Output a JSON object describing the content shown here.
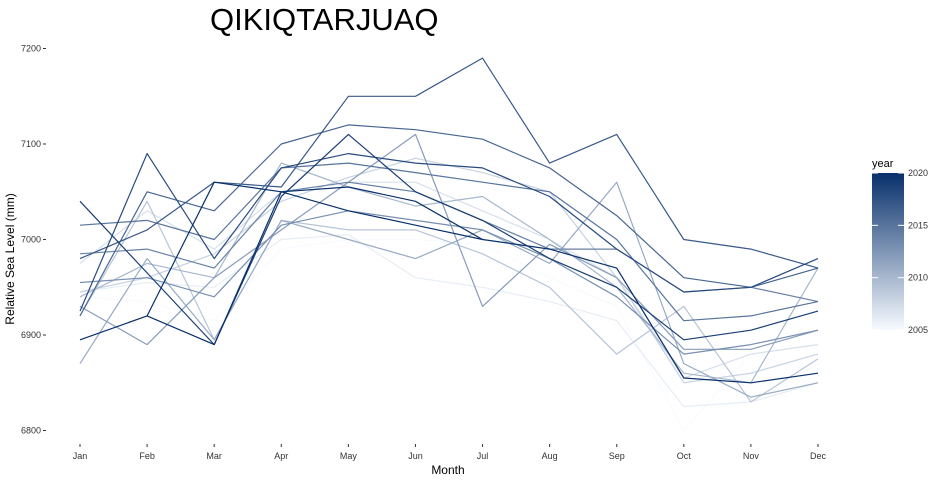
{
  "chart_data": {
    "type": "line",
    "title": "QIKIQTARJUAQ",
    "xlabel": "Month",
    "ylabel": "Relative Sea Level (mm)",
    "x": [
      "Jan",
      "Feb",
      "Mar",
      "Apr",
      "May",
      "Jun",
      "Jul",
      "Aug",
      "Sep",
      "Oct",
      "Nov",
      "Dec"
    ],
    "ylim": [
      6790,
      7215
    ],
    "yticks": [
      6800,
      6900,
      7000,
      7100,
      7200
    ],
    "grid": false,
    "legend": {
      "title": "year",
      "placement": "right",
      "min": 2005,
      "max": 2020,
      "ticks": [
        2005,
        2010,
        2015,
        2020
      ],
      "color_low": "#f7fbff",
      "color_high": "#08306b"
    },
    "series": [
      {
        "year": 2005,
        "values": [
          6940,
          6935,
          6915,
          6990,
          7000,
          7000,
          6995,
          6960,
          6930,
          6800,
          6880,
          6860
        ]
      },
      {
        "year": 2006,
        "values": [
          6945,
          6955,
          6950,
          7000,
          7005,
          6960,
          6950,
          6935,
          6915,
          6825,
          6830,
          6850
        ]
      },
      {
        "year": 2007,
        "values": [
          6975,
          7030,
          6990,
          7050,
          7060,
          7060,
          7030,
          7000,
          6960,
          6855,
          6880,
          6890
        ]
      },
      {
        "year": 2008,
        "values": [
          6945,
          6960,
          6985,
          7040,
          7065,
          7085,
          7070,
          7050,
          6960,
          6850,
          6860,
          6880
        ]
      },
      {
        "year": 2009,
        "values": [
          6920,
          7040,
          6895,
          7020,
          7010,
          7010,
          6985,
          6950,
          6880,
          6930,
          6830,
          6875
        ]
      },
      {
        "year": 2010,
        "values": [
          6940,
          6975,
          6960,
          7080,
          7055,
          7035,
          7045,
          7000,
          6950,
          6860,
          6850,
          6970
        ]
      },
      {
        "year": 2011,
        "values": [
          6870,
          6980,
          6895,
          7020,
          7000,
          6980,
          7010,
          6975,
          7060,
          6870,
          6835,
          6850
        ]
      },
      {
        "year": 2012,
        "values": [
          6930,
          6890,
          6960,
          7010,
          7060,
          7110,
          6930,
          6995,
          6960,
          6885,
          6885,
          6905
        ]
      },
      {
        "year": 2013,
        "values": [
          6955,
          6960,
          6940,
          7015,
          7030,
          7020,
          7010,
          6980,
          6940,
          6880,
          6890,
          6905
        ]
      },
      {
        "year": 2014,
        "values": [
          6985,
          6990,
          6970,
          7050,
          7060,
          7050,
          7020,
          6990,
          6990,
          6945,
          6950,
          6935
        ]
      },
      {
        "year": 2015,
        "values": [
          7015,
          7020,
          7000,
          7075,
          7080,
          7070,
          7060,
          7050,
          7000,
          6915,
          6920,
          6935
        ]
      },
      {
        "year": 2016,
        "values": [
          6920,
          7050,
          7030,
          7100,
          7120,
          7115,
          7105,
          7075,
          7025,
          6960,
          6950,
          6970
        ]
      },
      {
        "year": 2017,
        "values": [
          6980,
          7010,
          7060,
          7055,
          7150,
          7150,
          7190,
          7080,
          7110,
          7000,
          6990,
          6970
        ]
      },
      {
        "year": 2018,
        "values": [
          6925,
          7090,
          6980,
          7075,
          7090,
          7080,
          7075,
          7045,
          6990,
          6945,
          6950,
          6980
        ]
      },
      {
        "year": 2019,
        "values": [
          7040,
          6965,
          6890,
          7045,
          7110,
          7050,
          7020,
          6980,
          6950,
          6895,
          6905,
          6925
        ]
      },
      {
        "year": 2020,
        "values": [
          6895,
          6920,
          7060,
          7050,
          7055,
          7040,
          7000,
          6990,
          6970,
          6855,
          6850,
          6860
        ]
      },
      {
        "year": 2021,
        "values": [
          null,
          6920,
          6890,
          7050,
          7030,
          7015,
          7000,
          null,
          null,
          null,
          null,
          null
        ]
      }
    ]
  }
}
